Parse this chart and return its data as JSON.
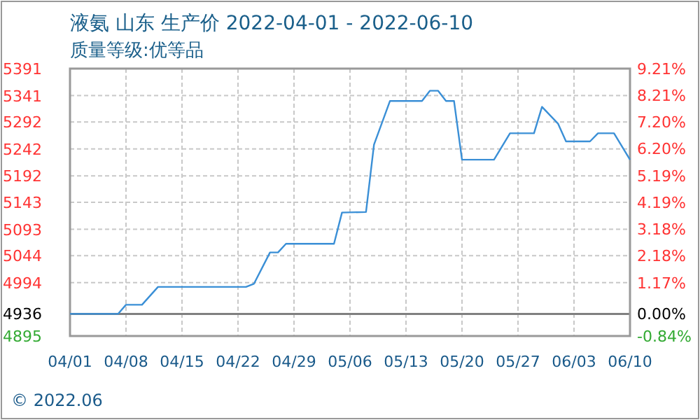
{
  "chart_data": {
    "type": "line",
    "title": "液氨 山东 生产价 2022-04-01 - 2022-06-10",
    "subtitle": "质量等级:优等品",
    "x": [
      "2022-04-01",
      "2022-04-07",
      "2022-04-08",
      "2022-04-10",
      "2022-04-12",
      "2022-04-23",
      "2022-04-24",
      "2022-04-26",
      "2022-04-27",
      "2022-04-28",
      "2022-05-04",
      "2022-05-05",
      "2022-05-08",
      "2022-05-09",
      "2022-05-11",
      "2022-05-15",
      "2022-05-16",
      "2022-05-17",
      "2022-05-18",
      "2022-05-19",
      "2022-05-20",
      "2022-05-24",
      "2022-05-26",
      "2022-05-29",
      "2022-05-30",
      "2022-06-01",
      "2022-06-02",
      "2022-06-05",
      "2022-06-06",
      "2022-06-08",
      "2022-06-10"
    ],
    "series": [
      {
        "color": "#3a8fd6",
        "values": [
          4936,
          4936,
          4953,
          4953,
          4986,
          4986,
          4992,
          5050,
          5050,
          5066,
          5066,
          5124,
          5125,
          5250,
          5331,
          5331,
          5350,
          5350,
          5331,
          5331,
          5222,
          5222,
          5271,
          5271,
          5320,
          5289,
          5256,
          5256,
          5271,
          5271,
          5222
        ]
      }
    ],
    "xlim": [
      "2022-04-01",
      "2022-06-10"
    ],
    "xticks": [
      {
        "value": "2022-04-01",
        "label": "04/01"
      },
      {
        "value": "2022-04-08",
        "label": "04/08"
      },
      {
        "value": "2022-04-15",
        "label": "04/15"
      },
      {
        "value": "2022-04-22",
        "label": "04/22"
      },
      {
        "value": "2022-04-29",
        "label": "04/29"
      },
      {
        "value": "2022-05-06",
        "label": "05/06"
      },
      {
        "value": "2022-05-13",
        "label": "05/13"
      },
      {
        "value": "2022-05-20",
        "label": "05/20"
      },
      {
        "value": "2022-05-27",
        "label": "05/27"
      },
      {
        "value": "2022-06-03",
        "label": "06/03"
      },
      {
        "value": "2022-06-10",
        "label": "06/10"
      }
    ],
    "ylim": [
      4895,
      5391
    ],
    "yticks": [
      4895,
      4936,
      4994,
      5044,
      5093,
      5143,
      5192,
      5242,
      5292,
      5341,
      5391
    ],
    "y2lim": [
      -0.84,
      9.21
    ],
    "y2ticks": [
      {
        "value": -0.84,
        "label": "-0.84%"
      },
      {
        "value": 0,
        "label": "0.00%"
      },
      {
        "value": 1.17,
        "label": "1.17%"
      },
      {
        "value": 2.18,
        "label": "2.18%"
      },
      {
        "value": 3.18,
        "label": "3.18%"
      },
      {
        "value": 4.19,
        "label": "4.19%"
      },
      {
        "value": 5.19,
        "label": "5.19%"
      },
      {
        "value": 6.2,
        "label": "6.20%"
      },
      {
        "value": 7.2,
        "label": "7.20%"
      },
      {
        "value": 8.21,
        "label": "8.21%"
      },
      {
        "value": 9.21,
        "label": "9.21%"
      }
    ],
    "ref_lines": [
      {
        "axis": "y",
        "value": 4936,
        "color": "#808080"
      }
    ],
    "grid": true,
    "marker": "none",
    "line_style": "solid",
    "annotations": [
      "© 2022.06"
    ]
  }
}
